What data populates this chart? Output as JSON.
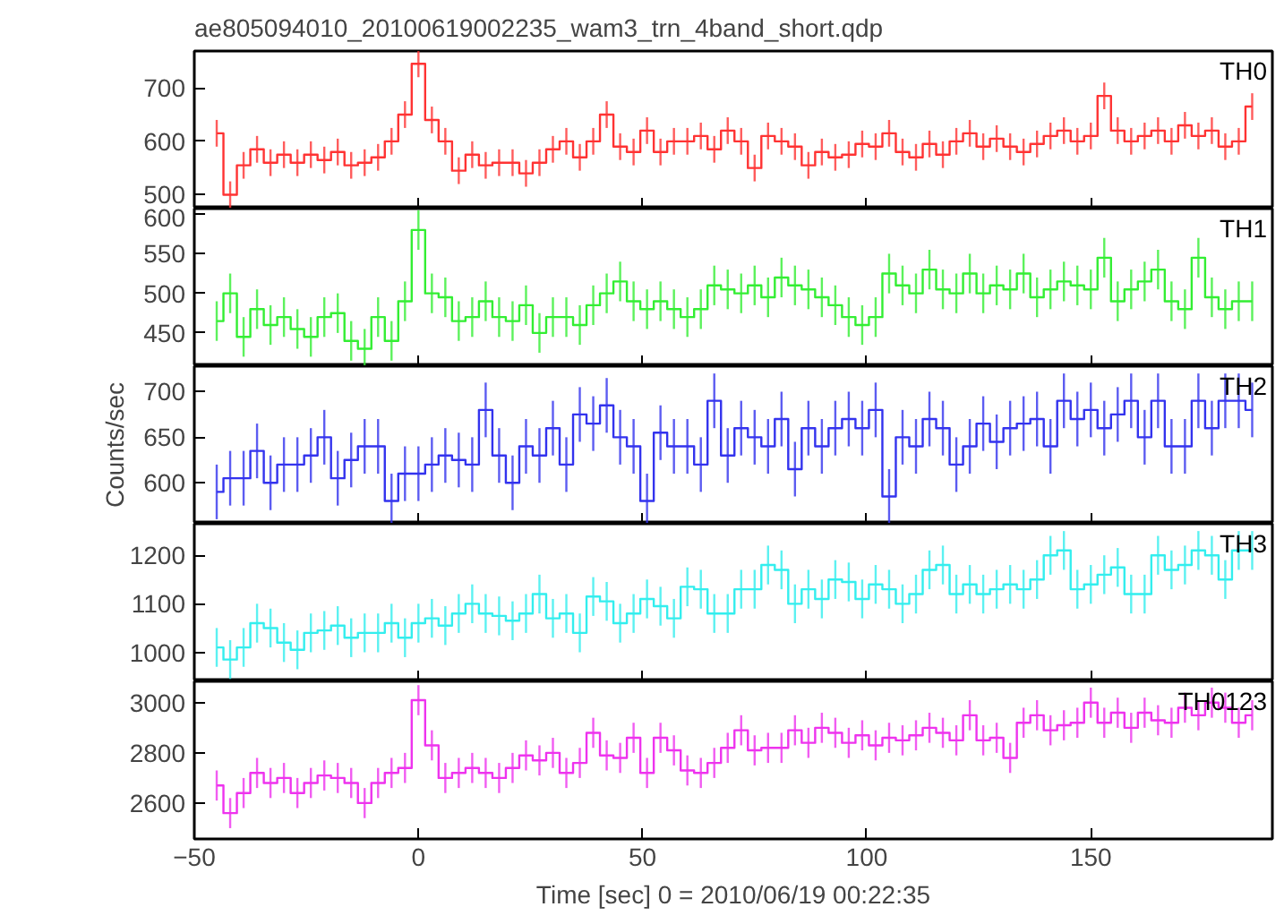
{
  "chart_data": [
    {
      "type": "step",
      "title": "ae805094010_20100619002235_wam3_trn_4band_short.qdp",
      "tick_labels": "y",
      "xlim": [
        -50,
        190.5
      ],
      "xticks": [
        -50,
        0,
        50,
        100,
        150
      ],
      "ylim": [
        474,
        769
      ],
      "yticks": [
        500,
        600,
        700
      ],
      "x": [
        -45,
        -42,
        -39,
        -36,
        -33,
        -30,
        -27,
        -24,
        -21,
        -18,
        -15,
        -12,
        -9,
        -6,
        -3,
        0,
        3,
        6,
        9,
        12,
        15,
        18,
        21,
        24,
        27,
        30,
        33,
        36,
        39,
        42,
        45,
        48,
        51,
        54,
        57,
        60,
        63,
        66,
        69,
        72,
        75,
        78,
        81,
        84,
        87,
        90,
        93,
        96,
        99,
        102,
        105,
        108,
        111,
        114,
        117,
        120,
        123,
        126,
        129,
        132,
        135,
        138,
        141,
        144,
        147,
        150,
        153,
        156,
        159,
        162,
        165,
        168,
        171,
        174,
        177,
        180,
        183,
        186
      ],
      "series": [
        {
          "name": "TH0",
          "color": "#ff3333",
          "values": [
            615,
            500,
            555,
            585,
            560,
            575,
            560,
            575,
            565,
            580,
            555,
            560,
            570,
            600,
            650,
            745,
            640,
            600,
            545,
            575,
            555,
            560,
            560,
            540,
            560,
            585,
            600,
            570,
            600,
            650,
            590,
            580,
            620,
            580,
            600,
            600,
            610,
            585,
            620,
            600,
            550,
            610,
            600,
            590,
            555,
            580,
            570,
            575,
            595,
            590,
            615,
            580,
            570,
            595,
            575,
            600,
            615,
            590,
            605,
            590,
            580,
            595,
            610,
            620,
            600,
            610,
            685,
            620,
            600,
            610,
            620,
            600,
            630,
            610,
            620,
            590,
            600,
            665
          ],
          "errors": [
            25,
            25,
            25,
            25,
            25,
            25,
            25,
            25,
            25,
            25,
            25,
            25,
            25,
            25,
            25,
            25,
            25,
            25,
            25,
            25,
            25,
            25,
            25,
            25,
            25,
            25,
            25,
            25,
            25,
            25,
            25,
            25,
            25,
            25,
            25,
            25,
            25,
            25,
            25,
            25,
            25,
            25,
            25,
            25,
            25,
            25,
            25,
            25,
            25,
            25,
            25,
            25,
            25,
            25,
            25,
            25,
            25,
            25,
            25,
            25,
            25,
            25,
            25,
            25,
            25,
            25,
            25,
            25,
            25,
            25,
            25,
            25,
            25,
            25,
            25,
            25,
            25,
            25
          ]
        }
      ]
    },
    {
      "type": "step",
      "tick_labels": "y",
      "xlim": [
        -50,
        190.5
      ],
      "xticks": [
        -50,
        0,
        50,
        100,
        150
      ],
      "ylim": [
        408,
        607
      ],
      "yticks": [
        450,
        500,
        550,
        600
      ],
      "x": [
        -45,
        -42,
        -39,
        -36,
        -33,
        -30,
        -27,
        -24,
        -21,
        -18,
        -15,
        -12,
        -9,
        -6,
        -3,
        0,
        3,
        6,
        9,
        12,
        15,
        18,
        21,
        24,
        27,
        30,
        33,
        36,
        39,
        42,
        45,
        48,
        51,
        54,
        57,
        60,
        63,
        66,
        69,
        72,
        75,
        78,
        81,
        84,
        87,
        90,
        93,
        96,
        99,
        102,
        105,
        108,
        111,
        114,
        117,
        120,
        123,
        126,
        129,
        132,
        135,
        138,
        141,
        144,
        147,
        150,
        153,
        156,
        159,
        162,
        165,
        168,
        171,
        174,
        177,
        180,
        183,
        186
      ],
      "series": [
        {
          "name": "TH1",
          "color": "#33ee33",
          "values": [
            465,
            500,
            445,
            480,
            460,
            470,
            455,
            445,
            470,
            475,
            440,
            430,
            470,
            440,
            490,
            580,
            500,
            495,
            465,
            470,
            490,
            470,
            465,
            485,
            450,
            470,
            470,
            460,
            485,
            500,
            515,
            490,
            480,
            490,
            480,
            470,
            480,
            510,
            505,
            500,
            510,
            495,
            520,
            510,
            505,
            495,
            485,
            470,
            460,
            470,
            525,
            510,
            500,
            530,
            505,
            500,
            525,
            500,
            510,
            505,
            525,
            495,
            505,
            515,
            510,
            505,
            545,
            490,
            505,
            515,
            530,
            490,
            480,
            545,
            495,
            480,
            490,
            490
          ],
          "errors": [
            25,
            25,
            25,
            25,
            25,
            25,
            25,
            25,
            25,
            25,
            25,
            25,
            25,
            25,
            25,
            25,
            25,
            25,
            25,
            25,
            25,
            25,
            25,
            25,
            25,
            25,
            25,
            25,
            25,
            25,
            25,
            25,
            25,
            25,
            25,
            25,
            25,
            25,
            25,
            25,
            25,
            25,
            25,
            25,
            25,
            25,
            25,
            25,
            25,
            25,
            25,
            25,
            25,
            25,
            25,
            25,
            25,
            25,
            25,
            25,
            25,
            25,
            25,
            25,
            25,
            25,
            25,
            25,
            25,
            25,
            25,
            25,
            25,
            25,
            25,
            25,
            25,
            25
          ]
        }
      ]
    },
    {
      "type": "step",
      "tick_labels": "y",
      "ylabel": "Counts/sec",
      "xlim": [
        -50,
        190.5
      ],
      "xticks": [
        -50,
        0,
        50,
        100,
        150
      ],
      "ylim": [
        555,
        728
      ],
      "yticks": [
        600,
        650,
        700
      ],
      "x": [
        -45,
        -42,
        -39,
        -36,
        -33,
        -30,
        -27,
        -24,
        -21,
        -18,
        -15,
        -12,
        -9,
        -6,
        -3,
        0,
        3,
        6,
        9,
        12,
        15,
        18,
        21,
        24,
        27,
        30,
        33,
        36,
        39,
        42,
        45,
        48,
        51,
        54,
        57,
        60,
        63,
        66,
        69,
        72,
        75,
        78,
        81,
        84,
        87,
        90,
        93,
        96,
        99,
        102,
        105,
        108,
        111,
        114,
        117,
        120,
        123,
        126,
        129,
        132,
        135,
        138,
        141,
        144,
        147,
        150,
        153,
        156,
        159,
        162,
        165,
        168,
        171,
        174,
        177,
        180,
        183,
        186
      ],
      "series": [
        {
          "name": "TH2",
          "color": "#3333ee",
          "values": [
            590,
            605,
            605,
            635,
            600,
            620,
            620,
            630,
            650,
            605,
            625,
            640,
            640,
            580,
            610,
            610,
            620,
            630,
            625,
            620,
            680,
            630,
            600,
            640,
            630,
            660,
            620,
            675,
            665,
            685,
            650,
            640,
            580,
            655,
            640,
            640,
            620,
            690,
            630,
            660,
            650,
            640,
            670,
            615,
            660,
            640,
            660,
            670,
            660,
            680,
            585,
            650,
            640,
            670,
            660,
            620,
            640,
            665,
            645,
            660,
            665,
            670,
            640,
            690,
            670,
            680,
            660,
            675,
            690,
            650,
            690,
            640,
            640,
            690,
            660,
            690,
            690,
            680
          ],
          "errors": [
            30,
            30,
            30,
            30,
            30,
            30,
            30,
            30,
            30,
            30,
            30,
            30,
            30,
            30,
            30,
            30,
            30,
            30,
            30,
            30,
            30,
            30,
            30,
            30,
            30,
            30,
            30,
            30,
            30,
            30,
            30,
            30,
            30,
            30,
            30,
            30,
            30,
            30,
            30,
            30,
            30,
            30,
            30,
            30,
            30,
            30,
            30,
            30,
            30,
            30,
            30,
            30,
            30,
            30,
            30,
            30,
            30,
            30,
            30,
            30,
            30,
            30,
            30,
            30,
            30,
            30,
            30,
            30,
            30,
            30,
            30,
            30,
            30,
            30,
            30,
            30,
            30,
            30
          ]
        }
      ]
    },
    {
      "type": "step",
      "tick_labels": "y",
      "xlim": [
        -50,
        190.5
      ],
      "xticks": [
        -50,
        0,
        50,
        100,
        150
      ],
      "ylim": [
        940,
        1265
      ],
      "yticks": [
        1000,
        1100,
        1200
      ],
      "x": [
        -45,
        -42,
        -39,
        -36,
        -33,
        -30,
        -27,
        -24,
        -21,
        -18,
        -15,
        -12,
        -9,
        -6,
        -3,
        0,
        3,
        6,
        9,
        12,
        15,
        18,
        21,
        24,
        27,
        30,
        33,
        36,
        39,
        42,
        45,
        48,
        51,
        54,
        57,
        60,
        63,
        66,
        69,
        72,
        75,
        78,
        81,
        84,
        87,
        90,
        93,
        96,
        99,
        102,
        105,
        108,
        111,
        114,
        117,
        120,
        123,
        126,
        129,
        132,
        135,
        138,
        141,
        144,
        147,
        150,
        153,
        156,
        159,
        162,
        165,
        168,
        171,
        174,
        177,
        180,
        183,
        186
      ],
      "series": [
        {
          "name": "TH3",
          "color": "#33eeee",
          "values": [
            1010,
            985,
            1010,
            1060,
            1050,
            1020,
            1005,
            1040,
            1045,
            1055,
            1030,
            1040,
            1040,
            1060,
            1030,
            1060,
            1070,
            1055,
            1080,
            1100,
            1080,
            1075,
            1065,
            1080,
            1120,
            1070,
            1080,
            1040,
            1115,
            1105,
            1060,
            1080,
            1110,
            1095,
            1070,
            1135,
            1130,
            1080,
            1080,
            1130,
            1130,
            1180,
            1170,
            1100,
            1130,
            1110,
            1150,
            1145,
            1110,
            1140,
            1130,
            1100,
            1120,
            1170,
            1180,
            1120,
            1140,
            1120,
            1130,
            1140,
            1130,
            1150,
            1200,
            1210,
            1130,
            1140,
            1160,
            1175,
            1120,
            1120,
            1200,
            1170,
            1180,
            1210,
            1200,
            1150,
            1210,
            1210
          ],
          "errors": [
            40,
            40,
            40,
            40,
            40,
            40,
            40,
            40,
            40,
            40,
            40,
            40,
            40,
            40,
            40,
            40,
            40,
            40,
            40,
            40,
            40,
            40,
            40,
            40,
            40,
            40,
            40,
            40,
            40,
            40,
            40,
            40,
            40,
            40,
            40,
            40,
            40,
            40,
            40,
            40,
            40,
            40,
            40,
            40,
            40,
            40,
            40,
            40,
            40,
            40,
            40,
            40,
            40,
            40,
            40,
            40,
            40,
            40,
            40,
            40,
            40,
            40,
            40,
            40,
            40,
            40,
            40,
            40,
            40,
            40,
            40,
            40,
            40,
            40,
            40,
            40,
            40,
            40
          ]
        }
      ]
    },
    {
      "type": "step",
      "xlabel": "Time [sec] 0 = 2010/06/19 00:22:35",
      "xlim": [
        -50,
        190.5
      ],
      "xticks": [
        -50,
        0,
        50,
        100,
        150
      ],
      "ylim": [
        2457,
        3085
      ],
      "yticks": [
        2600,
        2800,
        3000
      ],
      "x": [
        -45,
        -42,
        -39,
        -36,
        -33,
        -30,
        -27,
        -24,
        -21,
        -18,
        -15,
        -12,
        -9,
        -6,
        -3,
        0,
        3,
        6,
        9,
        12,
        15,
        18,
        21,
        24,
        27,
        30,
        33,
        36,
        39,
        42,
        45,
        48,
        51,
        54,
        57,
        60,
        63,
        66,
        69,
        72,
        75,
        78,
        81,
        84,
        87,
        90,
        93,
        96,
        99,
        102,
        105,
        108,
        111,
        114,
        117,
        120,
        123,
        126,
        129,
        132,
        135,
        138,
        141,
        144,
        147,
        150,
        153,
        156,
        159,
        162,
        165,
        168,
        171,
        174,
        177,
        180,
        183,
        186
      ],
      "series": [
        {
          "name": "TH0123",
          "color": "#ee33ee",
          "values": [
            2670,
            2560,
            2640,
            2720,
            2680,
            2700,
            2640,
            2680,
            2710,
            2700,
            2680,
            2600,
            2680,
            2720,
            2740,
            3010,
            2830,
            2700,
            2720,
            2740,
            2720,
            2700,
            2740,
            2790,
            2770,
            2800,
            2720,
            2760,
            2880,
            2790,
            2780,
            2860,
            2720,
            2860,
            2810,
            2730,
            2720,
            2760,
            2820,
            2890,
            2810,
            2820,
            2820,
            2890,
            2840,
            2900,
            2880,
            2840,
            2870,
            2830,
            2860,
            2850,
            2870,
            2900,
            2880,
            2850,
            2950,
            2850,
            2860,
            2780,
            2920,
            2950,
            2890,
            2910,
            2920,
            3000,
            2920,
            2960,
            2900,
            2960,
            2930,
            2920,
            2980,
            2950,
            3000,
            2980,
            2920,
            2950
          ],
          "errors": [
            60,
            60,
            60,
            60,
            60,
            60,
            60,
            60,
            60,
            60,
            60,
            60,
            60,
            60,
            60,
            60,
            60,
            60,
            60,
            60,
            60,
            60,
            60,
            60,
            60,
            60,
            60,
            60,
            60,
            60,
            60,
            60,
            60,
            60,
            60,
            60,
            60,
            60,
            60,
            60,
            60,
            60,
            60,
            60,
            60,
            60,
            60,
            60,
            60,
            60,
            60,
            60,
            60,
            60,
            60,
            60,
            60,
            60,
            60,
            60,
            60,
            60,
            60,
            60,
            60,
            60,
            60,
            60,
            60,
            60,
            60,
            60,
            60,
            60,
            60,
            60,
            60,
            60
          ]
        }
      ]
    }
  ]
}
